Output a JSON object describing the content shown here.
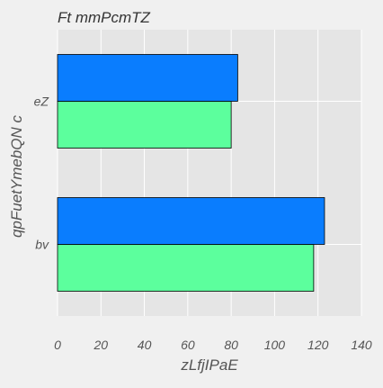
{
  "chart_data": {
    "type": "bar",
    "orientation": "horizontal",
    "title": "Ft  mmPcmTZ",
    "xlabel": "zLfjIPaE",
    "ylabel": "qpFuetYmebQN c",
    "categories": [
      "eZ",
      "bv"
    ],
    "series": [
      {
        "values": [
          80,
          118
        ],
        "color": "#5cff9d"
      },
      {
        "values": [
          83,
          123
        ],
        "color": "#0a7dfe"
      }
    ],
    "xlim": [
      0,
      140
    ],
    "xticks": [
      0,
      20,
      40,
      60,
      80,
      100,
      120,
      140
    ],
    "grid": true,
    "legend": "none",
    "plot_background": "#e5e5e5",
    "grid_color": "#ffffff"
  }
}
